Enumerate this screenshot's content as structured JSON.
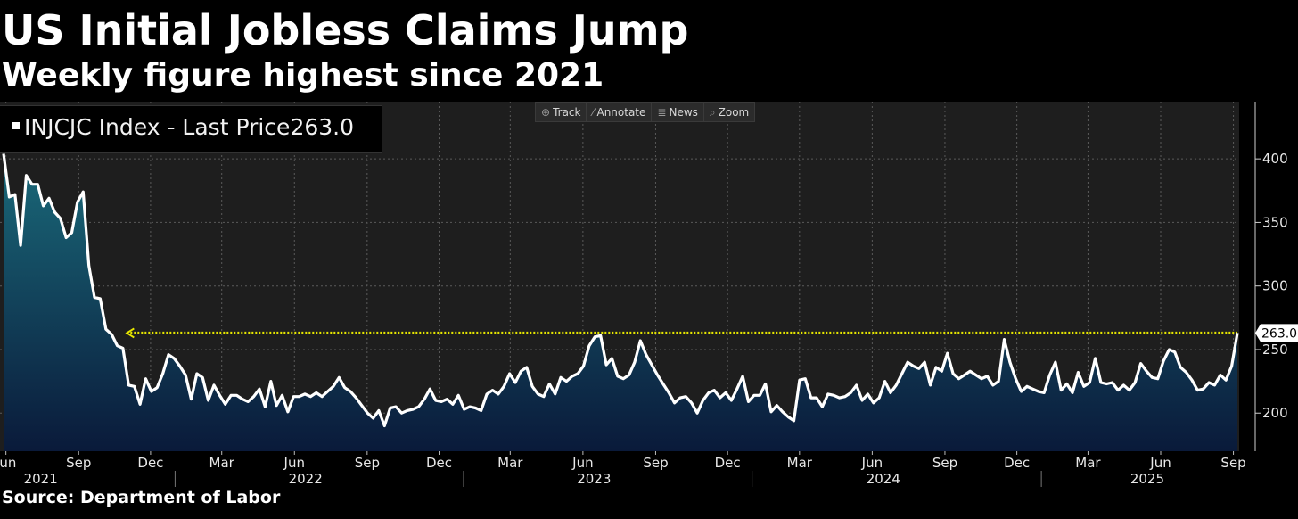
{
  "header": {
    "title": "US Initial Jobless Claims Jump",
    "subtitle": "Weekly figure highest since 2021"
  },
  "toolbar": {
    "track": "Track",
    "annotate": "Annotate",
    "news": "News",
    "zoom": "Zoom"
  },
  "legend": {
    "label": "INJCJC Index - Last Price",
    "value": "263.0"
  },
  "footer": {
    "source": "Source: Department of Labor"
  },
  "colors": {
    "line": "#ffffff",
    "reference": "#e6e600",
    "fill_top": "#1a6a7a",
    "fill_bottom": "#0a1a3a"
  },
  "chart_data": {
    "type": "area",
    "series": [
      {
        "name": "INJCJC Index - Last Price",
        "x_start": "2021-05-29",
        "x_end": "2025-09-06",
        "last": 263.0,
        "values": [
          404,
          370,
          372,
          332,
          387,
          380,
          380,
          363,
          369,
          358,
          353,
          338,
          342,
          366,
          374,
          316,
          291,
          290,
          266,
          262,
          253,
          251,
          222,
          221,
          207,
          227,
          217,
          220,
          231,
          246,
          243,
          237,
          230,
          211,
          231,
          228,
          210,
          222,
          214,
          207,
          214,
          214,
          211,
          209,
          213,
          219,
          205,
          225,
          206,
          214,
          201,
          213,
          213,
          215,
          213,
          216,
          213,
          217,
          221,
          228,
          220,
          217,
          212,
          206,
          200,
          196,
          202,
          190,
          204,
          205,
          200,
          202,
          203,
          205,
          211,
          219,
          210,
          209,
          211,
          207,
          214,
          203,
          205,
          204,
          202,
          215,
          218,
          215,
          221,
          231,
          224,
          233,
          236,
          221,
          215,
          213,
          223,
          215,
          228,
          225,
          229,
          231,
          237,
          253,
          260,
          261,
          238,
          243,
          229,
          227,
          230,
          240,
          257,
          246,
          238,
          230,
          223,
          216,
          208,
          212,
          213,
          208,
          200,
          210,
          216,
          218,
          212,
          216,
          210,
          219,
          229,
          209,
          214,
          214,
          223,
          201,
          206,
          201,
          197,
          194,
          226,
          227,
          212,
          212,
          205,
          215,
          214,
          212,
          213,
          216,
          222,
          210,
          215,
          208,
          212,
          225,
          216,
          222,
          231,
          240,
          237,
          235,
          240,
          222,
          236,
          233,
          247,
          231,
          227,
          230,
          233,
          230,
          227,
          229,
          222,
          225,
          258,
          240,
          227,
          217,
          221,
          219,
          217,
          216,
          230,
          240,
          218,
          223,
          216,
          232,
          221,
          224,
          243,
          224,
          223,
          224,
          218,
          222,
          218,
          224,
          239,
          233,
          228,
          227,
          241,
          250,
          248,
          236,
          232,
          226,
          218,
          219,
          224,
          222,
          230,
          226,
          237,
          263
        ]
      }
    ],
    "x_ticks": [
      "Jun",
      "Sep",
      "Dec",
      "Mar",
      "Jun",
      "Sep",
      "Dec",
      "Mar",
      "Jun",
      "Sep",
      "Dec",
      "Mar",
      "Jun",
      "Sep",
      "Dec",
      "Mar",
      "Jun",
      "Sep"
    ],
    "x_tick_dates": [
      "2021-06-01",
      "2021-09-01",
      "2021-12-01",
      "2022-03-01",
      "2022-06-01",
      "2022-09-01",
      "2022-12-01",
      "2023-03-01",
      "2023-06-01",
      "2023-09-01",
      "2023-12-01",
      "2024-03-01",
      "2024-06-01",
      "2024-09-01",
      "2024-12-01",
      "2025-03-01",
      "2025-06-01",
      "2025-09-01"
    ],
    "years": [
      "2021",
      "2022",
      "2023",
      "2024",
      "2025"
    ],
    "year_dates": [
      "2021-07-15",
      "2022-06-15",
      "2023-06-15",
      "2024-06-15",
      "2025-05-15"
    ],
    "year_boundaries": [
      "2022-01-01",
      "2023-01-01",
      "2024-01-01",
      "2025-01-01"
    ],
    "y_ticks": [
      200,
      250,
      300,
      350,
      400
    ],
    "ylim": [
      170,
      445
    ],
    "reference_line": {
      "value": 263.0,
      "from": "2021-11-01"
    },
    "grid": true
  }
}
